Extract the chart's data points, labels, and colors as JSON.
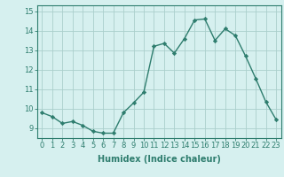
{
  "x": [
    0,
    1,
    2,
    3,
    4,
    5,
    6,
    7,
    8,
    9,
    10,
    11,
    12,
    13,
    14,
    15,
    16,
    17,
    18,
    19,
    20,
    21,
    22,
    23
  ],
  "y": [
    9.8,
    9.6,
    9.25,
    9.35,
    9.15,
    8.85,
    8.75,
    8.75,
    9.8,
    10.3,
    10.85,
    13.2,
    13.35,
    12.85,
    13.6,
    14.55,
    14.6,
    13.5,
    14.1,
    13.75,
    12.7,
    11.55,
    10.35,
    9.45
  ],
  "line_color": "#2e7d6e",
  "marker": "D",
  "marker_size": 2.2,
  "bg_color": "#d6f0ef",
  "grid_color": "#aacfcc",
  "xlabel": "Humidex (Indice chaleur)",
  "xlabel_fontsize": 7,
  "ylabel_ticks": [
    9,
    10,
    11,
    12,
    13,
    14,
    15
  ],
  "ylim": [
    8.5,
    15.3
  ],
  "xlim": [
    -0.5,
    23.5
  ],
  "tick_color": "#2e7d6e",
  "tick_fontsize": 6.0
}
